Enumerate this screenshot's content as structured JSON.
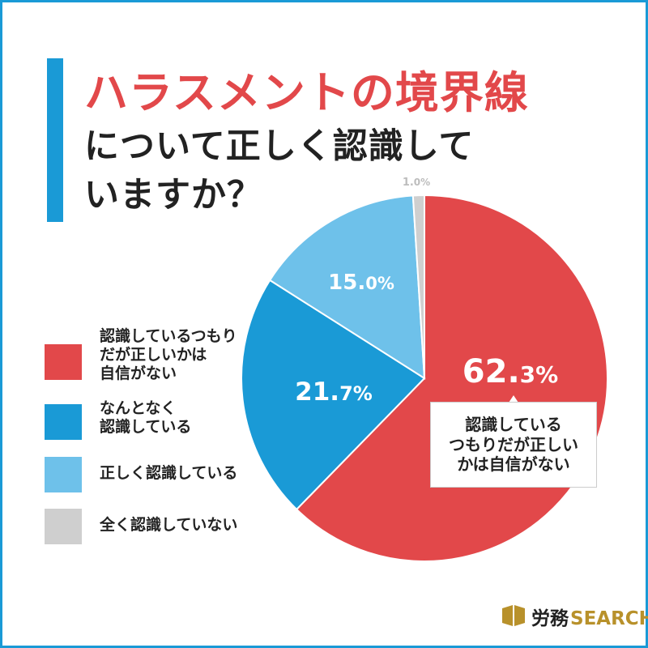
{
  "title": {
    "line1": "ハラスメントの境界線",
    "line2": "について正しく認識して",
    "line3": "いますか？"
  },
  "chart_data": {
    "type": "pie",
    "start_angle_deg": 0,
    "direction": "clockwise",
    "slices": [
      {
        "label": "認識しているつもりだが正しいかは自信がない",
        "value": 62.3,
        "display_major": "62.",
        "display_minor": "3%",
        "color": "#e2484a",
        "label_color": "#ffffff"
      },
      {
        "label": "なんとなく認識している",
        "value": 21.7,
        "display_major": "21.",
        "display_minor": "7%",
        "color": "#1a9ad6",
        "label_color": "#ffffff"
      },
      {
        "label": "正しく認識している",
        "value": 15.0,
        "display_major": "15.",
        "display_minor": "0%",
        "color": "#6ec1ea",
        "label_color": "#ffffff"
      },
      {
        "label": "全く認識していない",
        "value": 1.0,
        "display_major": "1.",
        "display_minor": "0%",
        "color": "#cfcfcf",
        "label_color": "#bdbdbd"
      }
    ]
  },
  "callout": {
    "lines": [
      "認識している",
      "つもりだが正しい",
      "かは自信がない"
    ]
  },
  "legend": [
    {
      "lines": [
        "認識しているつもり",
        "だが正しいかは",
        "自信がない"
      ],
      "color": "#e2484a"
    },
    {
      "lines": [
        "なんとなく",
        "認識している"
      ],
      "color": "#1a9ad6"
    },
    {
      "lines": [
        "正しく認識している"
      ],
      "color": "#6ec1ea"
    },
    {
      "lines": [
        "全く認識していない"
      ],
      "color": "#cfcfcf"
    }
  ],
  "brand": {
    "name_ja": "労務",
    "name_en": "SEARCH",
    "mark_color": "#b8912b"
  }
}
